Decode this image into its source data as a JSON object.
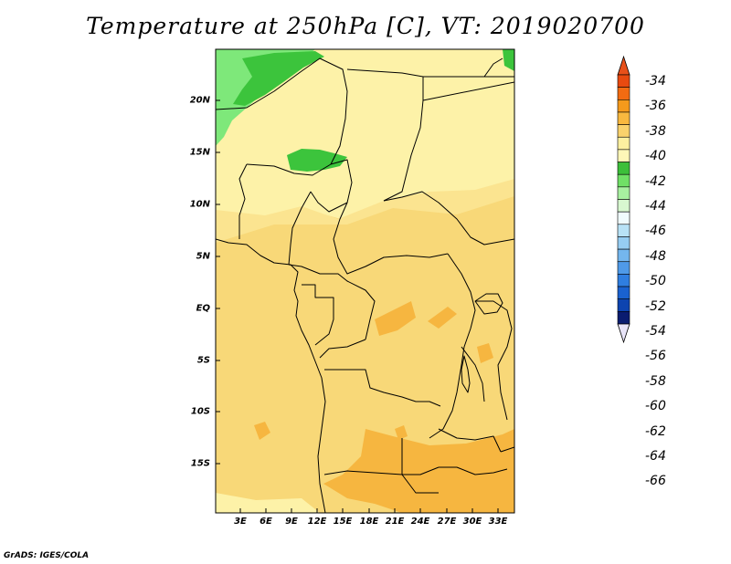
{
  "title": "Temperature at 250hPa [C], VT: 2019020700",
  "credit": "GrADS: IGES/COLA",
  "map": {
    "variable": "Temperature",
    "level": "250hPa",
    "units": "C",
    "valid_time": "2019020700",
    "lat_labels": [
      "20N",
      "15N",
      "10N",
      "5N",
      "EQ",
      "5S",
      "10S",
      "15S"
    ],
    "lon_labels": [
      "3E",
      "6E",
      "9E",
      "12E",
      "15E",
      "18E",
      "21E",
      "24E",
      "27E",
      "30E",
      "33E"
    ],
    "colorbar": {
      "labels": [
        "-34",
        "-36",
        "-38",
        "-40",
        "-42",
        "-44",
        "-46",
        "-48",
        "-50",
        "-52",
        "-54",
        "-56",
        "-58",
        "-60",
        "-62",
        "-64",
        "-66"
      ],
      "colors": [
        "#e84a10",
        "#f26b12",
        "#f59a1c",
        "#f8b83f",
        "#f9d26c",
        "#fdf0a0",
        "#fef7b8",
        "#3cbf3a",
        "#70e066",
        "#a8f0a0",
        "#d8f8d0",
        "#f0fbfd",
        "#b8e2f6",
        "#96cdf2",
        "#74b6ee",
        "#4f9ae8",
        "#2f7ee0",
        "#1a62d0",
        "#0d44b0",
        "#0a1c70"
      ],
      "top_color": "#e8501a",
      "bottom_color": "#e8e4f8"
    },
    "fill_colors": {
      "base": "#f8d878",
      "light": "#fdf2a8",
      "medium": "#fbe490",
      "warm": "#f6b640",
      "green_light": "#7ee87a",
      "green": "#3cc43c"
    }
  }
}
